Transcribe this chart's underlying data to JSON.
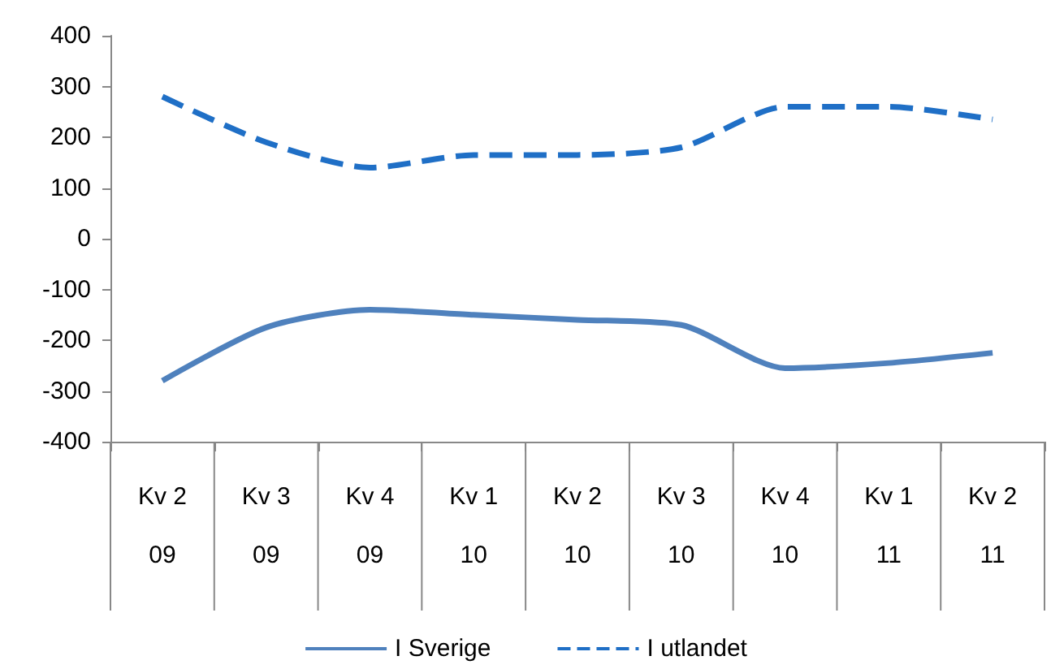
{
  "chart_data": {
    "type": "line",
    "categories": [
      "Kv 2\n09",
      "Kv 3\n09",
      "Kv 4\n09",
      "Kv 1\n10",
      "Kv 2\n10",
      "Kv 3\n10",
      "Kv 4\n10",
      "Kv 1\n11",
      "Kv 2\n11"
    ],
    "series": [
      {
        "name": "I Sverige",
        "color": "#4f81bd",
        "line_style": "solid",
        "values": [
          -280,
          -175,
          -140,
          -150,
          -160,
          -170,
          -255,
          -245,
          -225
        ]
      },
      {
        "name": "I utlandet",
        "color": "#1f6fc6",
        "line_style": "dashed",
        "values": [
          280,
          190,
          140,
          165,
          165,
          180,
          260,
          260,
          235
        ]
      }
    ],
    "ylim": [
      -400,
      400
    ],
    "yticks": [
      -400,
      -300,
      -200,
      -100,
      0,
      100,
      200,
      300,
      400
    ],
    "grid": false,
    "legend": "bottom",
    "marker": "none"
  }
}
